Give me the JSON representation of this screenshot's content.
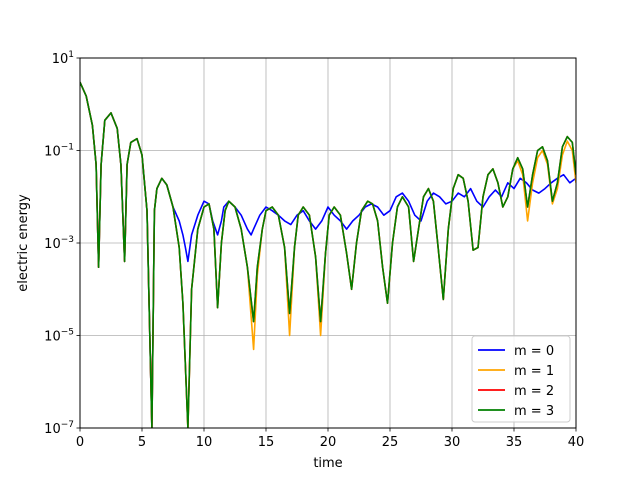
{
  "chart_data": {
    "type": "line",
    "title": "",
    "xlabel": "time",
    "ylabel": "electric energy",
    "xlim": [
      0,
      40
    ],
    "ylim": [
      1e-07,
      10
    ],
    "yscale": "log",
    "grid": true,
    "legend_position": "bottom-right",
    "x_ticks": [
      0,
      5,
      10,
      15,
      20,
      25,
      30,
      35,
      40
    ],
    "y_ticks": [
      {
        "value": 1e-07,
        "base": "10",
        "exp": "−7"
      },
      {
        "value": 1e-05,
        "base": "10",
        "exp": "−5"
      },
      {
        "value": 0.001,
        "base": "10",
        "exp": "−3"
      },
      {
        "value": 0.1,
        "base": "10",
        "exp": "−1"
      },
      {
        "value": 10,
        "base": "10",
        "exp": "1"
      }
    ],
    "series": [
      {
        "name": "m = 0",
        "color": "#0000ff",
        "x": [
          0,
          0.5,
          1.0,
          1.3,
          1.5,
          1.7,
          2.0,
          2.5,
          3.0,
          3.3,
          3.6,
          3.8,
          4.1,
          4.6,
          5.0,
          5.4,
          5.8,
          6.0,
          6.2,
          6.6,
          7.0,
          7.5,
          8.0,
          8.3,
          8.5,
          8.7,
          9.0,
          9.5,
          10.0,
          10.4,
          10.7,
          11.1,
          11.4,
          11.6,
          12.0,
          12.5,
          13.0,
          13.5,
          13.8,
          14.0,
          14.5,
          15.0,
          15.5,
          16.0,
          16.5,
          17.0,
          17.5,
          18.0,
          18.5,
          19.0,
          19.5,
          20.0,
          20.5,
          21.0,
          21.5,
          22.0,
          22.5,
          23.0,
          23.5,
          24.0,
          24.5,
          25.0,
          25.5,
          26.0,
          26.5,
          27.0,
          27.5,
          28.0,
          28.5,
          29.0,
          29.5,
          30.0,
          30.5,
          31.0,
          31.5,
          32.0,
          32.5,
          33.0,
          33.5,
          34.0,
          34.5,
          35.0,
          35.5,
          36.0,
          36.5,
          37.0,
          37.5,
          38.0,
          38.5,
          39.0,
          39.5,
          40.0
        ],
        "y": [
          3.0,
          1.5,
          0.35,
          0.05,
          0.0003,
          0.05,
          0.45,
          0.65,
          0.3,
          0.05,
          0.0004,
          0.05,
          0.15,
          0.18,
          0.08,
          0.005,
          1e-07,
          0.005,
          0.015,
          0.025,
          0.018,
          0.006,
          0.003,
          0.0015,
          0.0008,
          0.0004,
          0.0015,
          0.004,
          0.008,
          0.007,
          0.003,
          0.0015,
          0.003,
          0.006,
          0.008,
          0.006,
          0.004,
          0.002,
          0.0015,
          0.002,
          0.004,
          0.006,
          0.005,
          0.004,
          0.003,
          0.0025,
          0.004,
          0.005,
          0.003,
          0.002,
          0.003,
          0.006,
          0.004,
          0.003,
          0.002,
          0.003,
          0.004,
          0.006,
          0.007,
          0.006,
          0.004,
          0.005,
          0.01,
          0.012,
          0.008,
          0.004,
          0.003,
          0.008,
          0.012,
          0.01,
          0.007,
          0.008,
          0.012,
          0.01,
          0.015,
          0.008,
          0.006,
          0.01,
          0.014,
          0.01,
          0.02,
          0.015,
          0.025,
          0.02,
          0.014,
          0.012,
          0.015,
          0.02,
          0.025,
          0.03,
          0.02,
          0.025
        ]
      },
      {
        "name": "m = 1",
        "color": "#ffa500",
        "x": [
          0,
          0.5,
          1.0,
          1.3,
          1.5,
          1.7,
          2.0,
          2.5,
          3.0,
          3.3,
          3.6,
          3.8,
          4.1,
          4.6,
          5.0,
          5.4,
          5.8,
          6.0,
          6.2,
          6.6,
          7.0,
          7.5,
          8.0,
          8.3,
          8.7,
          9.0,
          9.5,
          10.0,
          10.4,
          10.8,
          11.1,
          11.4,
          11.7,
          12.0,
          12.5,
          13.0,
          13.5,
          14.0,
          14.3,
          14.7,
          15.0,
          15.5,
          16.0,
          16.5,
          16.9,
          17.3,
          17.6,
          18.0,
          18.5,
          19.0,
          19.4,
          19.8,
          20.1,
          20.5,
          21.0,
          21.5,
          21.9,
          22.3,
          22.7,
          23.2,
          23.6,
          24.0,
          24.4,
          24.8,
          25.2,
          25.6,
          26.0,
          26.5,
          26.9,
          27.3,
          27.7,
          28.1,
          28.5,
          28.9,
          29.3,
          29.7,
          30.1,
          30.5,
          30.9,
          31.3,
          31.7,
          32.1,
          32.5,
          32.9,
          33.3,
          33.7,
          34.1,
          34.5,
          34.9,
          35.3,
          35.7,
          36.1,
          36.5,
          36.9,
          37.3,
          37.7,
          38.1,
          38.5,
          38.9,
          39.3,
          39.7,
          40.0
        ],
        "y": [
          3.0,
          1.5,
          0.35,
          0.05,
          0.0003,
          0.05,
          0.45,
          0.65,
          0.3,
          0.05,
          0.0004,
          0.05,
          0.15,
          0.18,
          0.08,
          0.005,
          1e-07,
          0.005,
          0.015,
          0.025,
          0.018,
          0.006,
          0.0008,
          5e-05,
          1e-07,
          0.0001,
          0.002,
          0.006,
          0.007,
          0.002,
          4e-05,
          0.001,
          0.005,
          0.008,
          0.006,
          0.002,
          0.0003,
          5e-06,
          0.0002,
          0.002,
          0.005,
          0.006,
          0.004,
          0.0008,
          1e-05,
          0.0008,
          0.004,
          0.006,
          0.004,
          0.0005,
          1e-05,
          0.0006,
          0.004,
          0.006,
          0.004,
          0.0006,
          0.0001,
          0.001,
          0.005,
          0.008,
          0.007,
          0.003,
          0.0003,
          5e-05,
          0.001,
          0.006,
          0.01,
          0.006,
          0.0004,
          0.002,
          0.01,
          0.015,
          0.008,
          0.0007,
          6e-05,
          0.002,
          0.015,
          0.03,
          0.025,
          0.008,
          0.0007,
          0.0008,
          0.01,
          0.03,
          0.04,
          0.02,
          0.006,
          0.01,
          0.04,
          0.06,
          0.03,
          0.003,
          0.02,
          0.07,
          0.1,
          0.05,
          0.007,
          0.015,
          0.08,
          0.16,
          0.1,
          0.02
        ]
      },
      {
        "name": "m = 2",
        "color": "#ff0000",
        "x": [
          0,
          0.5,
          1.0,
          1.3,
          1.5,
          1.7,
          2.0,
          2.5,
          3.0,
          3.3,
          3.6,
          3.8,
          4.1,
          4.6,
          5.0,
          5.4,
          5.8,
          6.0,
          6.2,
          6.6,
          7.0,
          7.5,
          8.0,
          8.3,
          8.7,
          9.0,
          9.5,
          10.0,
          10.4,
          10.8,
          11.1,
          11.4,
          11.7,
          12.0,
          12.5,
          13.0,
          13.5,
          14.0,
          14.3,
          14.7,
          15.0,
          15.5,
          16.0,
          16.5,
          16.9,
          17.3,
          17.6,
          18.0,
          18.5,
          19.0,
          19.4,
          19.8,
          20.1,
          20.5,
          21.0,
          21.5,
          21.9,
          22.3,
          22.7,
          23.2,
          23.6,
          24.0,
          24.4,
          24.8,
          25.2,
          25.6,
          26.0,
          26.5,
          26.9,
          27.3,
          27.7,
          28.1,
          28.5,
          28.9,
          29.3,
          29.7,
          30.1,
          30.5,
          30.9,
          31.3,
          31.7,
          32.1,
          32.5,
          32.9,
          33.3,
          33.7,
          34.1,
          34.5,
          34.9,
          35.3,
          35.7,
          36.1,
          36.5,
          36.9,
          37.3,
          37.7,
          38.1,
          38.5,
          38.9,
          39.3,
          39.7,
          40.0
        ],
        "y": [
          3.0,
          1.5,
          0.35,
          0.05,
          0.0003,
          0.05,
          0.45,
          0.65,
          0.3,
          0.05,
          0.0004,
          0.05,
          0.15,
          0.18,
          0.08,
          0.005,
          1e-07,
          0.005,
          0.015,
          0.025,
          0.018,
          0.006,
          0.0008,
          5e-05,
          1e-07,
          0.0001,
          0.002,
          0.006,
          0.007,
          0.002,
          4e-05,
          0.001,
          0.005,
          0.008,
          0.006,
          0.002,
          0.0003,
          2e-05,
          0.0003,
          0.002,
          0.005,
          0.006,
          0.004,
          0.0008,
          3e-05,
          0.0008,
          0.004,
          0.006,
          0.004,
          0.0005,
          2e-05,
          0.0006,
          0.004,
          0.006,
          0.004,
          0.0006,
          0.0001,
          0.001,
          0.005,
          0.008,
          0.007,
          0.003,
          0.0003,
          5e-05,
          0.001,
          0.006,
          0.01,
          0.006,
          0.0004,
          0.002,
          0.01,
          0.015,
          0.008,
          0.0007,
          6e-05,
          0.002,
          0.015,
          0.03,
          0.025,
          0.008,
          0.0007,
          0.0008,
          0.01,
          0.03,
          0.04,
          0.02,
          0.006,
          0.01,
          0.04,
          0.07,
          0.04,
          0.006,
          0.03,
          0.1,
          0.12,
          0.06,
          0.008,
          0.02,
          0.12,
          0.2,
          0.15,
          0.03
        ]
      },
      {
        "name": "m = 3",
        "color": "#008000",
        "x": [
          0,
          0.5,
          1.0,
          1.3,
          1.5,
          1.7,
          2.0,
          2.5,
          3.0,
          3.3,
          3.6,
          3.8,
          4.1,
          4.6,
          5.0,
          5.4,
          5.8,
          6.0,
          6.2,
          6.6,
          7.0,
          7.5,
          8.0,
          8.3,
          8.7,
          9.0,
          9.5,
          10.0,
          10.4,
          10.8,
          11.1,
          11.4,
          11.7,
          12.0,
          12.5,
          13.0,
          13.5,
          14.0,
          14.3,
          14.7,
          15.0,
          15.5,
          16.0,
          16.5,
          16.9,
          17.3,
          17.6,
          18.0,
          18.5,
          19.0,
          19.4,
          19.8,
          20.1,
          20.5,
          21.0,
          21.5,
          21.9,
          22.3,
          22.7,
          23.2,
          23.6,
          24.0,
          24.4,
          24.8,
          25.2,
          25.6,
          26.0,
          26.5,
          26.9,
          27.3,
          27.7,
          28.1,
          28.5,
          28.9,
          29.3,
          29.7,
          30.1,
          30.5,
          30.9,
          31.3,
          31.7,
          32.1,
          32.5,
          32.9,
          33.3,
          33.7,
          34.1,
          34.5,
          34.9,
          35.3,
          35.7,
          36.1,
          36.5,
          36.9,
          37.3,
          37.7,
          38.1,
          38.5,
          38.9,
          39.3,
          39.7,
          40.0
        ],
        "y": [
          3.0,
          1.5,
          0.35,
          0.05,
          0.0003,
          0.05,
          0.45,
          0.65,
          0.3,
          0.05,
          0.0004,
          0.05,
          0.15,
          0.18,
          0.08,
          0.005,
          1e-07,
          0.005,
          0.015,
          0.025,
          0.018,
          0.006,
          0.0008,
          5e-05,
          1e-07,
          0.0001,
          0.002,
          0.006,
          0.007,
          0.002,
          4e-05,
          0.001,
          0.005,
          0.008,
          0.006,
          0.002,
          0.0003,
          2e-05,
          0.0003,
          0.002,
          0.005,
          0.006,
          0.004,
          0.0008,
          3e-05,
          0.0008,
          0.004,
          0.006,
          0.004,
          0.0005,
          2e-05,
          0.0006,
          0.004,
          0.006,
          0.004,
          0.0006,
          0.0001,
          0.001,
          0.005,
          0.008,
          0.007,
          0.003,
          0.0003,
          5e-05,
          0.001,
          0.006,
          0.01,
          0.006,
          0.0004,
          0.002,
          0.01,
          0.015,
          0.008,
          0.0007,
          6e-05,
          0.002,
          0.015,
          0.03,
          0.025,
          0.008,
          0.0007,
          0.0008,
          0.01,
          0.03,
          0.04,
          0.02,
          0.006,
          0.01,
          0.04,
          0.07,
          0.04,
          0.006,
          0.03,
          0.1,
          0.12,
          0.06,
          0.008,
          0.02,
          0.12,
          0.2,
          0.15,
          0.03
        ]
      }
    ]
  }
}
